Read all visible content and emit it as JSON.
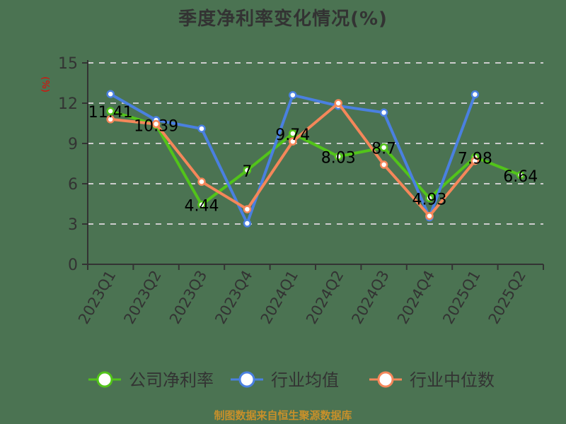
{
  "title": "季度净利率变化情况(%)",
  "y_unit_label": "(%)",
  "source": "制图数据来自恒生聚源数据库",
  "colors": {
    "background": "#4b7352",
    "company": "#52c41a",
    "industry_avg": "#4a80e0",
    "industry_median": "#f5875a",
    "grid": "#cccccc",
    "axis": "#333333",
    "source_text": "#c8902a"
  },
  "legend": [
    {
      "label": "公司净利率",
      "color": "#52c41a"
    },
    {
      "label": "行业均值",
      "color": "#4a80e0"
    },
    {
      "label": "行业中位数",
      "color": "#f5875a"
    }
  ],
  "chart_data": {
    "type": "line",
    "title": "季度净利率变化情况(%)",
    "xlabel": "",
    "ylabel": "(%)",
    "ylim": [
      0,
      15
    ],
    "yticks": [
      0,
      3,
      6,
      9,
      12,
      15
    ],
    "grid": true,
    "legend_position": "bottom",
    "categories": [
      "2023Q1",
      "2023Q2",
      "2023Q3",
      "2023Q4",
      "2024Q1",
      "2024Q2",
      "2024Q3",
      "2024Q4",
      "2025Q1",
      "2025Q2"
    ],
    "series": [
      {
        "name": "公司净利率",
        "values": [
          11.41,
          10.39,
          4.44,
          7,
          9.74,
          8.03,
          8.7,
          4.93,
          7.98,
          6.64
        ],
        "labeled": true
      },
      {
        "name": "行业均值",
        "values": [
          12.68,
          10.74,
          10.1,
          3.05,
          12.6,
          11.8,
          11.3,
          3.5,
          12.65,
          null
        ]
      },
      {
        "name": "行业中位数",
        "values": [
          10.8,
          10.45,
          6.15,
          4.1,
          9.15,
          12.0,
          7.42,
          3.6,
          7.7,
          null
        ]
      }
    ]
  }
}
